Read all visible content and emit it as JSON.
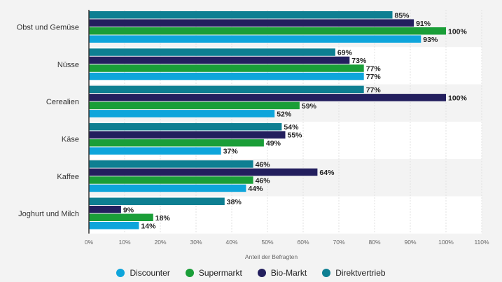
{
  "chart_data": {
    "type": "bar",
    "orientation": "horizontal",
    "title": "",
    "xlabel": "Anteil der Befragten",
    "ylabel": "",
    "xlim": [
      0,
      110
    ],
    "x_ticks": [
      "0%",
      "10%",
      "20%",
      "30%",
      "40%",
      "50%",
      "60%",
      "70%",
      "80%",
      "90%",
      "100%",
      "110%"
    ],
    "grid": true,
    "legend_position": "bottom",
    "categories": [
      "Obst und Gemüse",
      "Nüsse",
      "Cerealien",
      "Käse",
      "Kaffee",
      "Joghurt und Milch"
    ],
    "series": [
      {
        "name": "Discounter",
        "color": "#0ea5db",
        "values": [
          93,
          77,
          52,
          37,
          44,
          14
        ]
      },
      {
        "name": "Supermarkt",
        "color": "#1a9e38",
        "values": [
          100,
          77,
          59,
          49,
          46,
          18
        ]
      },
      {
        "name": "Bio-Markt",
        "color": "#231f5e",
        "values": [
          91,
          73,
          100,
          55,
          64,
          9
        ]
      },
      {
        "name": "Direktvertrieb",
        "color": "#0e7f92",
        "values": [
          85,
          69,
          77,
          54,
          46,
          38
        ]
      }
    ],
    "value_suffix": "%"
  }
}
